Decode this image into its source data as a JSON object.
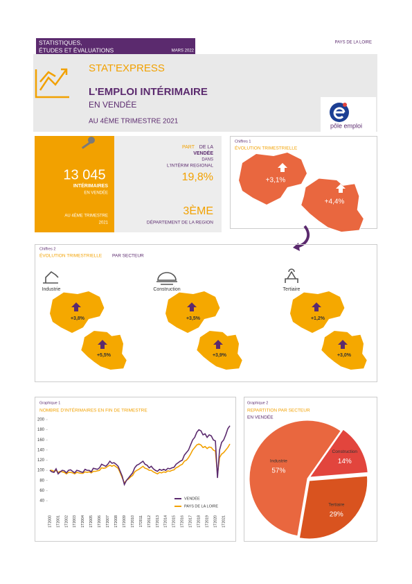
{
  "header": {
    "section_lines": [
      "STATISTIQUES,",
      "ÉTUDES ET ÉVALUATIONS"
    ],
    "date": "MARS 2022",
    "region": "PAYS DE LA LOIRE",
    "brand": "STAT'EXPRESS",
    "title": "L'EMPLOI INTÉRIMAIRE",
    "subtitle": "EN VENDÉE",
    "period": "AU 4ÈME TRIMESTRE 2021",
    "logo_text": "pôle emploi"
  },
  "kpi": {
    "count": "13 045",
    "count_label": "INTÉRIMAIRES",
    "count_sublabel": "EN VENDÉE",
    "period_lines": [
      "AU 4ÈME TRIMESTRE",
      "2021"
    ],
    "share_lines": [
      "PART",
      "DE LA",
      "VENDÉE",
      "DANS",
      "L'INTÉRIM REGIONAL"
    ],
    "share": "19,8%",
    "rank": "3ÈME",
    "rank_label": "DÉPARTEMENT DE LA REGION"
  },
  "evolution": {
    "caption": "Chiffres 1",
    "title": "ÉVOLUTION TRIMESTRIELLE",
    "maps": [
      {
        "value": "+3,1%"
      },
      {
        "value": "+4,4%"
      }
    ]
  },
  "sectors": {
    "caption": "Chiffres 2",
    "title": "ÉVOLUTION TRIMESTRIELLE",
    "title_suffix": "PAR SECTEUR",
    "items": [
      {
        "name": "Industrie",
        "region_value": "+3,8%",
        "vendee_value": "+5,5%"
      },
      {
        "name": "Construction",
        "region_value": "+3,5%",
        "vendee_value": "+3,9%"
      },
      {
        "name": "Tertiaire",
        "region_value": "+1,2%",
        "vendee_value": "+3,0%"
      }
    ]
  },
  "chart_data": [
    {
      "type": "line",
      "caption": "Graphique 1",
      "title": "NOMBRE D'INTÉRIMAIRES EN FIN DE TRIMESTRE",
      "categories": [
        "1T2000",
        null,
        null,
        null,
        "1T2001",
        null,
        null,
        null,
        "1T2002",
        null,
        null,
        null,
        "1T2003",
        null,
        null,
        null,
        "1T2004",
        null,
        null,
        null,
        "1T2005",
        null,
        null,
        null,
        "1T2006",
        null,
        null,
        null,
        "1T2007",
        null,
        null,
        null,
        "1T2008",
        null,
        null,
        null,
        "1T2009",
        null,
        null,
        null,
        "1T2010",
        null,
        null,
        null,
        "1T2011",
        null,
        null,
        null,
        "1T2012",
        null,
        null,
        null,
        "1T2013",
        null,
        null,
        null,
        "1T2014",
        null,
        null,
        null,
        "1T2015",
        null,
        null,
        null,
        "1T2016",
        null,
        null,
        null,
        "1T2017",
        null,
        null,
        null,
        "1T2018",
        null,
        null,
        null,
        "1T2019",
        null,
        null,
        null,
        "1T2020",
        null,
        null,
        null,
        "1T2021",
        null,
        null,
        null
      ],
      "series": [
        {
          "name": "VENDÉE",
          "color": "#5b2a6e",
          "values": [
            100,
            97,
            96,
            103,
            93,
            97,
            100,
            99,
            95,
            100,
            101,
            98,
            95,
            100,
            99,
            97,
            96,
            102,
            100,
            100,
            97,
            104,
            103,
            102,
            105,
            112,
            110,
            108,
            112,
            118,
            114,
            115,
            112,
            108,
            98,
            88,
            72,
            80,
            85,
            90,
            95,
            105,
            110,
            112,
            115,
            118,
            112,
            110,
            105,
            108,
            103,
            100,
            98,
            102,
            100,
            102,
            100,
            104,
            103,
            105,
            106,
            112,
            115,
            118,
            120,
            130,
            135,
            140,
            150,
            160,
            165,
            175,
            180,
            178,
            170,
            172,
            165,
            170,
            168,
            160,
            158,
            85,
            140,
            155,
            160,
            170,
            182,
            188
          ]
        },
        {
          "name": "PAYS DE LA LOIRE",
          "color": "#f2a100",
          "values": [
            100,
            100,
            98,
            100,
            96,
            98,
            97,
            96,
            93,
            96,
            96,
            95,
            93,
            96,
            95,
            94,
            94,
            97,
            96,
            97,
            95,
            98,
            98,
            99,
            100,
            105,
            104,
            105,
            108,
            110,
            108,
            110,
            107,
            104,
            95,
            85,
            75,
            80,
            83,
            87,
            90,
            97,
            100,
            102,
            105,
            108,
            104,
            103,
            100,
            100,
            97,
            95,
            93,
            96,
            95,
            97,
            96,
            99,
            98,
            100,
            101,
            105,
            107,
            110,
            112,
            118,
            120,
            125,
            132,
            140,
            145,
            150,
            152,
            150,
            145,
            147,
            143,
            146,
            145,
            140,
            138,
            92,
            125,
            132,
            135,
            140,
            145,
            152
          ]
        }
      ],
      "ylim": [
        40,
        200
      ],
      "yticks": [
        40,
        60,
        80,
        100,
        120,
        140,
        160,
        180,
        200
      ],
      "grid": false,
      "legend": "bottom-right"
    },
    {
      "type": "pie",
      "caption": "Graphique 2",
      "title": "REPARTITION PAR SECTEUR",
      "subtitle": "EN VENDÉE",
      "categories": [
        "Industrie",
        "Construction",
        "Tertiaire"
      ],
      "values": [
        57,
        14,
        29
      ],
      "value_labels": [
        "57%",
        "14%",
        "29%"
      ],
      "colors": [
        "#e9673f",
        "#e2453d",
        "#d9531f"
      ]
    }
  ]
}
